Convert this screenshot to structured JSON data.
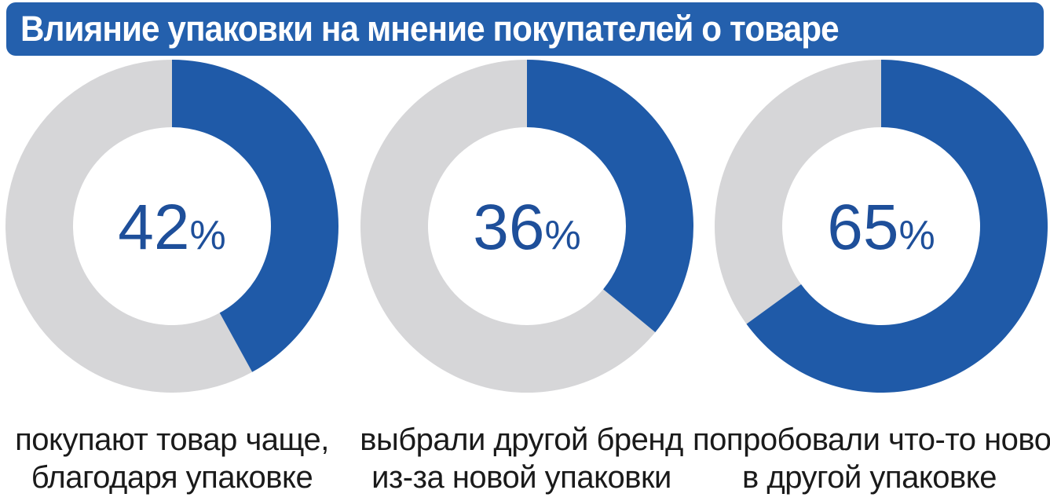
{
  "title": "Влияние упаковки на мнение покупателей о товаре",
  "colors": {
    "accent": "#1f5aa8",
    "remainder": "#d6d6d8",
    "title_bg": "#2460ad",
    "title_text": "#ffffff",
    "value_text": "#1e4f9a",
    "caption_text": "#1a1a1a"
  },
  "chart_data": [
    {
      "type": "pie",
      "value": 42,
      "unit": "%",
      "label": "покупают товар чаще, благодаря упаковке",
      "caption_lines": [
        "покупают товар чаще,",
        "благодаря упаковке"
      ]
    },
    {
      "type": "pie",
      "value": 36,
      "unit": "%",
      "label": "выбрали другой бренд из-за новой упаковки",
      "caption_lines": [
        "выбрали другой бренд",
        "из-за новой упаковки"
      ]
    },
    {
      "type": "pie",
      "value": 65,
      "unit": "%",
      "label": "попробовали что-то новое в другой упаковке",
      "caption_lines": [
        "попробовали что-то новое",
        "в другой упаковке"
      ]
    }
  ]
}
